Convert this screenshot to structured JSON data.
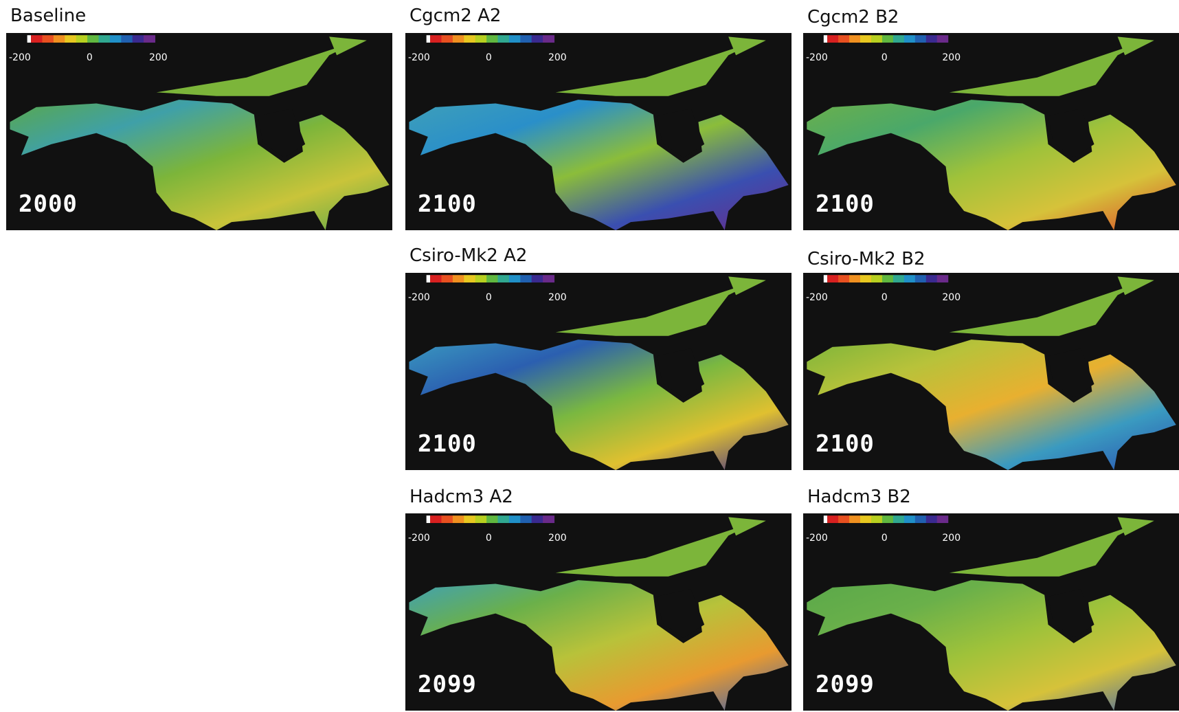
{
  "panels": [
    {
      "title": "Baseline",
      "year": "2000",
      "scale": [
        "-200",
        "0",
        "200"
      ]
    },
    {
      "title": "Cgcm2 A2",
      "year": "2100",
      "scale": [
        "-200",
        "0",
        "200"
      ]
    },
    {
      "title": "Cgcm2 B2",
      "year": "2100",
      "scale": [
        "-200",
        "0",
        "200"
      ]
    },
    {
      "title": "Csiro-Mk2 A2",
      "year": "2100",
      "scale": [
        "-200",
        "0",
        "200"
      ]
    },
    {
      "title": "Csiro-Mk2 B2",
      "year": "2100",
      "scale": [
        "-200",
        "0",
        "200"
      ]
    },
    {
      "title": "Hadcm3 A2",
      "year": "2099",
      "scale": [
        "-200",
        "0",
        "200"
      ]
    },
    {
      "title": "Hadcm3 B2",
      "year": "2099",
      "scale": [
        "-200",
        "0",
        "200"
      ]
    }
  ]
}
